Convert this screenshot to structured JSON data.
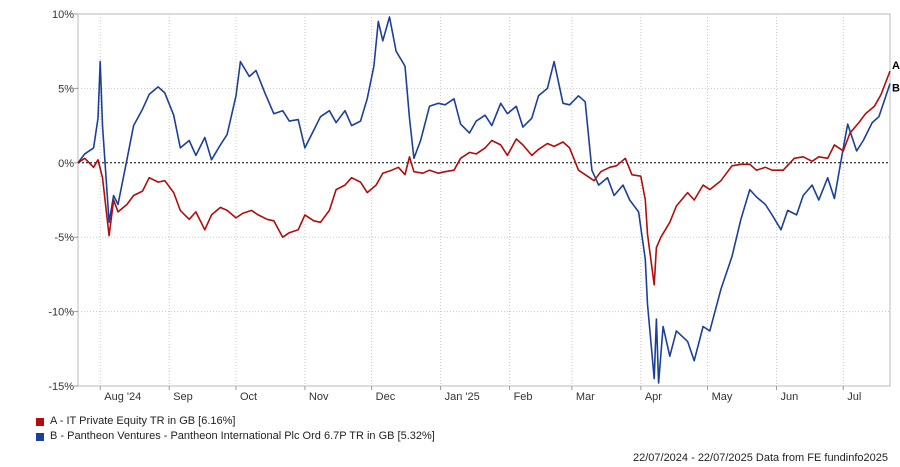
{
  "chart_data": {
    "type": "line",
    "ylim": [
      -15,
      10
    ],
    "y_ticks": [
      10,
      5,
      0,
      -5,
      -10,
      -15
    ],
    "y_tick_labels": [
      "10%",
      "5%",
      "0%",
      "-5%",
      "-10%",
      "-15%"
    ],
    "x_tick_labels": [
      "Aug '24",
      "Sep",
      "Oct",
      "Nov",
      "Dec",
      "Jan '25",
      "Feb",
      "Mar",
      "Apr",
      "May",
      "Jun",
      "Jul"
    ],
    "x_tick_dates": [
      "2024-08-01",
      "2024-09-01",
      "2024-10-01",
      "2024-11-01",
      "2024-12-01",
      "2025-01-01",
      "2025-02-01",
      "2025-03-01",
      "2025-04-01",
      "2025-05-01",
      "2025-06-01",
      "2025-07-01"
    ],
    "xrange": [
      "2024-07-22",
      "2025-07-22"
    ],
    "grid": true,
    "zero_line": true,
    "series": [
      {
        "name": "A - IT Private Equity TR in GB [6.16%]",
        "end_label": "A",
        "color": "#b00d0d",
        "points": [
          [
            "2024-07-22",
            0
          ],
          [
            "2024-07-25",
            0.3
          ],
          [
            "2024-07-29",
            -0.3
          ],
          [
            "2024-07-31",
            0.2
          ],
          [
            "2024-08-02",
            -1.0
          ],
          [
            "2024-08-05",
            -4.9
          ],
          [
            "2024-08-07",
            -2.5
          ],
          [
            "2024-08-09",
            -3.3
          ],
          [
            "2024-08-13",
            -2.8
          ],
          [
            "2024-08-16",
            -2.2
          ],
          [
            "2024-08-20",
            -1.9
          ],
          [
            "2024-08-23",
            -1.0
          ],
          [
            "2024-08-27",
            -1.3
          ],
          [
            "2024-08-30",
            -1.2
          ],
          [
            "2024-09-03",
            -2.0
          ],
          [
            "2024-09-06",
            -3.2
          ],
          [
            "2024-09-10",
            -3.8
          ],
          [
            "2024-09-13",
            -3.3
          ],
          [
            "2024-09-17",
            -4.5
          ],
          [
            "2024-09-20",
            -3.5
          ],
          [
            "2024-09-24",
            -3.0
          ],
          [
            "2024-09-27",
            -3.2
          ],
          [
            "2024-10-01",
            -3.7
          ],
          [
            "2024-10-04",
            -3.4
          ],
          [
            "2024-10-08",
            -3.2
          ],
          [
            "2024-10-11",
            -3.5
          ],
          [
            "2024-10-15",
            -3.8
          ],
          [
            "2024-10-18",
            -3.9
          ],
          [
            "2024-10-22",
            -5.0
          ],
          [
            "2024-10-25",
            -4.7
          ],
          [
            "2024-10-29",
            -4.5
          ],
          [
            "2024-11-01",
            -3.5
          ],
          [
            "2024-11-05",
            -3.9
          ],
          [
            "2024-11-08",
            -4.0
          ],
          [
            "2024-11-12",
            -3.2
          ],
          [
            "2024-11-15",
            -1.8
          ],
          [
            "2024-11-19",
            -1.5
          ],
          [
            "2024-11-22",
            -1.0
          ],
          [
            "2024-11-26",
            -1.3
          ],
          [
            "2024-11-29",
            -2.0
          ],
          [
            "2024-12-03",
            -1.5
          ],
          [
            "2024-12-06",
            -0.7
          ],
          [
            "2024-12-10",
            -0.5
          ],
          [
            "2024-12-13",
            -0.3
          ],
          [
            "2024-12-16",
            -0.8
          ],
          [
            "2024-12-18",
            0.4
          ],
          [
            "2024-12-20",
            -0.6
          ],
          [
            "2024-12-24",
            -0.7
          ],
          [
            "2024-12-27",
            -0.5
          ],
          [
            "2024-12-31",
            -0.7
          ],
          [
            "2025-01-03",
            -0.6
          ],
          [
            "2025-01-07",
            -0.5
          ],
          [
            "2025-01-10",
            0.3
          ],
          [
            "2025-01-14",
            0.7
          ],
          [
            "2025-01-17",
            0.6
          ],
          [
            "2025-01-21",
            1.0
          ],
          [
            "2025-01-24",
            1.5
          ],
          [
            "2025-01-28",
            1.2
          ],
          [
            "2025-01-31",
            0.5
          ],
          [
            "2025-02-04",
            1.6
          ],
          [
            "2025-02-07",
            1.2
          ],
          [
            "2025-02-11",
            0.5
          ],
          [
            "2025-02-14",
            0.9
          ],
          [
            "2025-02-18",
            1.3
          ],
          [
            "2025-02-21",
            1.1
          ],
          [
            "2025-02-25",
            1.4
          ],
          [
            "2025-02-28",
            1.0
          ],
          [
            "2025-03-04",
            -0.5
          ],
          [
            "2025-03-07",
            -0.8
          ],
          [
            "2025-03-11",
            -1.2
          ],
          [
            "2025-03-14",
            -0.6
          ],
          [
            "2025-03-18",
            -0.3
          ],
          [
            "2025-03-21",
            -0.2
          ],
          [
            "2025-03-25",
            0.3
          ],
          [
            "2025-03-28",
            -0.8
          ],
          [
            "2025-04-01",
            -0.9
          ],
          [
            "2025-04-03",
            -2.5
          ],
          [
            "2025-04-04",
            -4.8
          ],
          [
            "2025-04-07",
            -8.2
          ],
          [
            "2025-04-08",
            -5.7
          ],
          [
            "2025-04-10",
            -5.0
          ],
          [
            "2025-04-14",
            -4.0
          ],
          [
            "2025-04-17",
            -2.9
          ],
          [
            "2025-04-22",
            -2.0
          ],
          [
            "2025-04-25",
            -2.5
          ],
          [
            "2025-04-29",
            -1.5
          ],
          [
            "2025-05-02",
            -1.8
          ],
          [
            "2025-05-07",
            -1.2
          ],
          [
            "2025-05-12",
            -0.2
          ],
          [
            "2025-05-16",
            -0.1
          ],
          [
            "2025-05-20",
            -0.1
          ],
          [
            "2025-05-23",
            -0.5
          ],
          [
            "2025-05-27",
            -0.3
          ],
          [
            "2025-05-30",
            -0.5
          ],
          [
            "2025-06-04",
            -0.5
          ],
          [
            "2025-06-09",
            0.3
          ],
          [
            "2025-06-13",
            0.4
          ],
          [
            "2025-06-17",
            0.1
          ],
          [
            "2025-06-20",
            0.4
          ],
          [
            "2025-06-24",
            0.3
          ],
          [
            "2025-06-27",
            1.2
          ],
          [
            "2025-07-01",
            0.8
          ],
          [
            "2025-07-04",
            2.0
          ],
          [
            "2025-07-08",
            2.7
          ],
          [
            "2025-07-11",
            3.3
          ],
          [
            "2025-07-15",
            3.8
          ],
          [
            "2025-07-18",
            4.6
          ],
          [
            "2025-07-22",
            6.16
          ]
        ]
      },
      {
        "name": "B - Pantheon Ventures - Pantheon International Plc Ord 6.7P TR in GB [5.32%]",
        "end_label": "B",
        "color": "#1c3f97",
        "points": [
          [
            "2024-07-22",
            0
          ],
          [
            "2024-07-25",
            0.6
          ],
          [
            "2024-07-29",
            1.0
          ],
          [
            "2024-07-31",
            3.0
          ],
          [
            "2024-08-01",
            6.8
          ],
          [
            "2024-08-02",
            2.5
          ],
          [
            "2024-08-05",
            -4.0
          ],
          [
            "2024-08-07",
            -2.2
          ],
          [
            "2024-08-09",
            -2.8
          ],
          [
            "2024-08-13",
            0.2
          ],
          [
            "2024-08-16",
            2.5
          ],
          [
            "2024-08-20",
            3.6
          ],
          [
            "2024-08-23",
            4.6
          ],
          [
            "2024-08-27",
            5.1
          ],
          [
            "2024-08-30",
            4.7
          ],
          [
            "2024-09-03",
            3.2
          ],
          [
            "2024-09-06",
            1.0
          ],
          [
            "2024-09-10",
            1.5
          ],
          [
            "2024-09-13",
            0.5
          ],
          [
            "2024-09-17",
            1.7
          ],
          [
            "2024-09-20",
            0.2
          ],
          [
            "2024-09-24",
            1.2
          ],
          [
            "2024-09-27",
            1.9
          ],
          [
            "2024-10-01",
            4.5
          ],
          [
            "2024-10-03",
            6.8
          ],
          [
            "2024-10-07",
            5.8
          ],
          [
            "2024-10-10",
            6.2
          ],
          [
            "2024-10-14",
            4.7
          ],
          [
            "2024-10-18",
            3.3
          ],
          [
            "2024-10-22",
            3.5
          ],
          [
            "2024-10-25",
            2.8
          ],
          [
            "2024-10-29",
            2.9
          ],
          [
            "2024-11-01",
            1.0
          ],
          [
            "2024-11-05",
            2.2
          ],
          [
            "2024-11-08",
            3.1
          ],
          [
            "2024-11-12",
            3.5
          ],
          [
            "2024-11-15",
            2.7
          ],
          [
            "2024-11-19",
            3.5
          ],
          [
            "2024-11-22",
            2.5
          ],
          [
            "2024-11-26",
            2.8
          ],
          [
            "2024-11-29",
            4.3
          ],
          [
            "2024-12-02",
            6.5
          ],
          [
            "2024-12-04",
            9.5
          ],
          [
            "2024-12-06",
            8.2
          ],
          [
            "2024-12-09",
            9.8
          ],
          [
            "2024-12-12",
            7.5
          ],
          [
            "2024-12-16",
            6.5
          ],
          [
            "2024-12-18",
            3.0
          ],
          [
            "2024-12-20",
            0.3
          ],
          [
            "2024-12-23",
            1.5
          ],
          [
            "2024-12-27",
            3.8
          ],
          [
            "2024-12-31",
            4.0
          ],
          [
            "2025-01-03",
            3.9
          ],
          [
            "2025-01-07",
            4.3
          ],
          [
            "2025-01-10",
            2.6
          ],
          [
            "2025-01-14",
            2.0
          ],
          [
            "2025-01-17",
            2.8
          ],
          [
            "2025-01-21",
            3.2
          ],
          [
            "2025-01-24",
            2.5
          ],
          [
            "2025-01-28",
            4.0
          ],
          [
            "2025-01-31",
            3.3
          ],
          [
            "2025-02-04",
            3.8
          ],
          [
            "2025-02-07",
            2.4
          ],
          [
            "2025-02-11",
            3.0
          ],
          [
            "2025-02-14",
            4.5
          ],
          [
            "2025-02-18",
            5.0
          ],
          [
            "2025-02-21",
            6.8
          ],
          [
            "2025-02-25",
            4.0
          ],
          [
            "2025-02-28",
            3.9
          ],
          [
            "2025-03-04",
            4.5
          ],
          [
            "2025-03-07",
            4.1
          ],
          [
            "2025-03-10",
            -0.5
          ],
          [
            "2025-03-13",
            -1.5
          ],
          [
            "2025-03-17",
            -1.0
          ],
          [
            "2025-03-20",
            -2.2
          ],
          [
            "2025-03-24",
            -1.5
          ],
          [
            "2025-03-27",
            -2.5
          ],
          [
            "2025-03-31",
            -3.3
          ],
          [
            "2025-04-03",
            -6.5
          ],
          [
            "2025-04-04",
            -9.5
          ],
          [
            "2025-04-07",
            -14.5
          ],
          [
            "2025-04-08",
            -10.5
          ],
          [
            "2025-04-09",
            -14.8
          ],
          [
            "2025-04-11",
            -11.0
          ],
          [
            "2025-04-14",
            -13.0
          ],
          [
            "2025-04-17",
            -11.3
          ],
          [
            "2025-04-22",
            -12.0
          ],
          [
            "2025-04-25",
            -13.3
          ],
          [
            "2025-04-29",
            -11.0
          ],
          [
            "2025-05-02",
            -11.3
          ],
          [
            "2025-05-07",
            -8.5
          ],
          [
            "2025-05-12",
            -6.3
          ],
          [
            "2025-05-16",
            -3.8
          ],
          [
            "2025-05-20",
            -1.8
          ],
          [
            "2025-05-23",
            -2.3
          ],
          [
            "2025-05-27",
            -2.8
          ],
          [
            "2025-05-30",
            -3.5
          ],
          [
            "2025-06-03",
            -4.5
          ],
          [
            "2025-06-06",
            -3.2
          ],
          [
            "2025-06-10",
            -3.5
          ],
          [
            "2025-06-13",
            -2.2
          ],
          [
            "2025-06-17",
            -1.5
          ],
          [
            "2025-06-20",
            -2.5
          ],
          [
            "2025-06-24",
            -1.0
          ],
          [
            "2025-06-27",
            -2.4
          ],
          [
            "2025-07-01",
            1.0
          ],
          [
            "2025-07-03",
            2.6
          ],
          [
            "2025-07-07",
            0.8
          ],
          [
            "2025-07-10",
            1.5
          ],
          [
            "2025-07-14",
            2.7
          ],
          [
            "2025-07-17",
            3.1
          ],
          [
            "2025-07-22",
            5.32
          ]
        ]
      }
    ]
  },
  "footer_text": "22/07/2024 - 22/07/2025 Data from FE fundinfo2025"
}
